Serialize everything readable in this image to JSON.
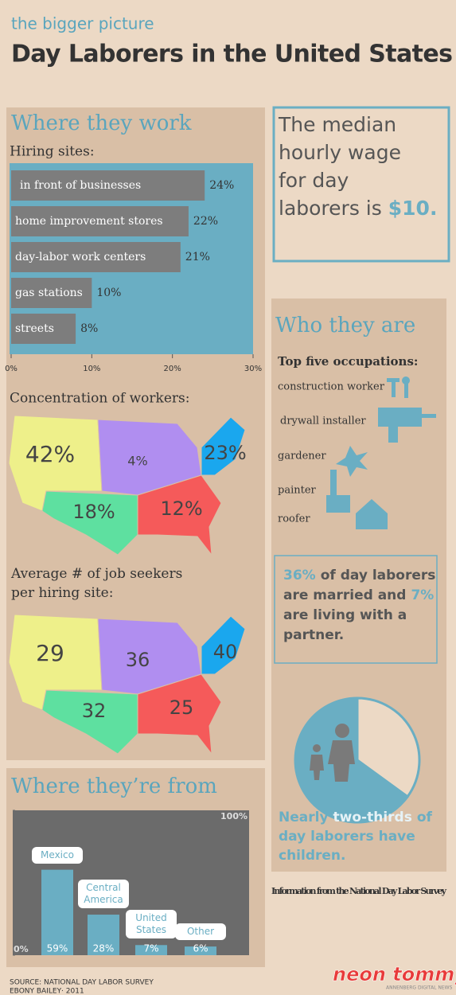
{
  "header": {
    "kicker": "the bigger picture",
    "title": "Day Laborers in the United States"
  },
  "chart_data": [
    {
      "type": "hbar",
      "title": "Where they work",
      "subtitle": "Hiring sites:",
      "categories": [
        "in front of businesses",
        "home improvement stores",
        "day-labor work centers",
        "gas stations",
        "streets"
      ],
      "values": [
        24,
        22,
        21,
        10,
        8
      ],
      "value_labels": [
        "24%",
        "22%",
        "21%",
        "10%",
        "8%"
      ],
      "xlim": [
        0,
        30
      ],
      "xticks": [
        {
          "value": 0,
          "label": "0%"
        },
        {
          "value": 10,
          "label": "10%"
        },
        {
          "value": 20,
          "label": "20%"
        },
        {
          "value": 30,
          "label": "30%"
        }
      ],
      "color": "#7d7d7d",
      "background": "#6aaec3"
    },
    {
      "type": "map",
      "title": "Concentration of workers:",
      "values": [
        42,
        4,
        23,
        18,
        12
      ],
      "value_labels": [
        "42%",
        "4%",
        "23%",
        "18%",
        "12%"
      ],
      "colors": [
        "#eef08a",
        "#b08ef0",
        "#1aa7ee",
        "#5ee0a0",
        "#f55a5a"
      ]
    },
    {
      "type": "map",
      "title": "Average # of job seekers per hiring site:",
      "values": [
        29,
        36,
        40,
        32,
        25
      ],
      "colors": [
        "#eef08a",
        "#b08ef0",
        "#1aa7ee",
        "#5ee0a0",
        "#f55a5a"
      ]
    },
    {
      "type": "bar",
      "title": "Where they’re from",
      "categories": [
        "Mexico",
        "Central America",
        "United States",
        "Other"
      ],
      "values": [
        59,
        28,
        7,
        6
      ],
      "value_labels": [
        "59%",
        "28%",
        "7%",
        "6%"
      ],
      "ylim": [
        0,
        100
      ],
      "yticks": [
        {
          "value": 0,
          "label": "0%"
        },
        {
          "value": 100,
          "label": "100%"
        }
      ],
      "color": "#6aaec3",
      "background": "#6b6b6b"
    },
    {
      "type": "pie",
      "values": [
        35,
        65
      ],
      "colors": [
        "#ecd9c5",
        "#6aaec3"
      ],
      "annotation": [
        [
          {
            "text": "Nearly",
            "highlight": false
          },
          {
            "text": "two-thirds",
            "highlight": true
          },
          {
            "text": "of",
            "highlight": false
          }
        ],
        [
          {
            "text": "day laborers have",
            "highlight": false
          }
        ],
        [
          {
            "text": "children.",
            "highlight": false
          }
        ]
      ]
    }
  ],
  "wage": {
    "lines": [
      "The median",
      "hourly wage",
      "for day",
      "laborers is"
    ],
    "amount": "$10."
  },
  "who": {
    "title": "Who they are",
    "subtitle": "Top five occupations:",
    "occupations": [
      "construction worker",
      "drywall installer",
      "gardener",
      "painter",
      "roofer"
    ]
  },
  "married": {
    "lines": [
      [
        {
          "text": "36%",
          "highlight": true
        },
        {
          "text": "of day laborers",
          "highlight": false
        }
      ],
      [
        {
          "text": "are married and",
          "highlight": false
        },
        {
          "text": "7%",
          "highlight": true
        }
      ],
      [
        {
          "text": "are living with a",
          "highlight": false
        }
      ],
      [
        {
          "text": "partner.",
          "highlight": false
        }
      ]
    ]
  },
  "source_note": "Information from the National Day Labor Survey",
  "footer": {
    "source": "SOURCE: NATIONAL DAY LABOR SURVEY",
    "author": "EBONY BAILEY· 2011",
    "logo": "neon tommy",
    "logo_sub": "ANNENBERG DIGITAL NEWS"
  }
}
